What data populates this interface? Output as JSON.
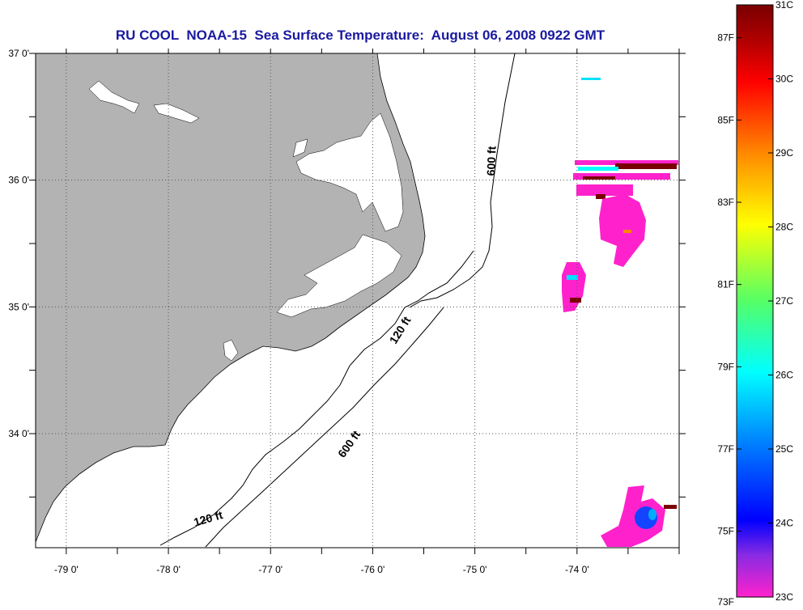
{
  "title": "RU COOL  NOAA-15  Sea Surface Temperature:  August 06, 2008 0922 GMT",
  "map": {
    "lon_ticks": [
      {
        "value": -79,
        "label": "-79 0'"
      },
      {
        "value": -78,
        "label": "-78 0'"
      },
      {
        "value": -77,
        "label": "-77 0'"
      },
      {
        "value": -76,
        "label": "-76 0'"
      },
      {
        "value": -75,
        "label": "-75 0'"
      },
      {
        "value": -74,
        "label": "-74 0'"
      }
    ],
    "lat_ticks": [
      {
        "value": 37,
        "label": "37 0'"
      },
      {
        "value": 36,
        "label": "36 0'"
      },
      {
        "value": 35,
        "label": "35 0'"
      },
      {
        "value": 34,
        "label": "34 0'"
      }
    ],
    "lon_range": [
      -79.3,
      -73.0
    ],
    "lat_range": [
      33.1,
      37.0
    ],
    "grid": true,
    "colors": {
      "land": "#b3b3b3",
      "water": "#ffffff",
      "grid": "#555555",
      "title": "#1a1aa0"
    },
    "contour_labels": [
      {
        "text": "600 ft",
        "lon": -74.8,
        "lat": 36.15,
        "angle": -88
      },
      {
        "text": "120 ft",
        "lon": -75.7,
        "lat": 34.8,
        "angle": -58
      },
      {
        "text": "600 ft",
        "lon": -76.2,
        "lat": 33.9,
        "angle": -55
      },
      {
        "text": "120 ft",
        "lon": -77.6,
        "lat": 33.3,
        "angle": -16
      }
    ]
  },
  "colorbar": {
    "celsius": [
      {
        "value": 31,
        "label": "31C"
      },
      {
        "value": 30,
        "label": "30C"
      },
      {
        "value": 29,
        "label": "29C"
      },
      {
        "value": 28,
        "label": "28C"
      },
      {
        "value": 27,
        "label": "27C"
      },
      {
        "value": 26,
        "label": "26C"
      },
      {
        "value": 25,
        "label": "25C"
      },
      {
        "value": 24,
        "label": "24C"
      },
      {
        "value": 23,
        "label": "23C"
      }
    ],
    "fahrenheit": [
      {
        "value": 87,
        "label": "87F"
      },
      {
        "value": 85,
        "label": "85F"
      },
      {
        "value": 83,
        "label": "83F"
      },
      {
        "value": 81,
        "label": "81F"
      },
      {
        "value": 79,
        "label": "79F"
      },
      {
        "value": 77,
        "label": "77F"
      },
      {
        "value": 75,
        "label": "75F"
      },
      {
        "value": 73,
        "label": "73F"
      }
    ],
    "range_c": [
      23,
      31
    ]
  }
}
